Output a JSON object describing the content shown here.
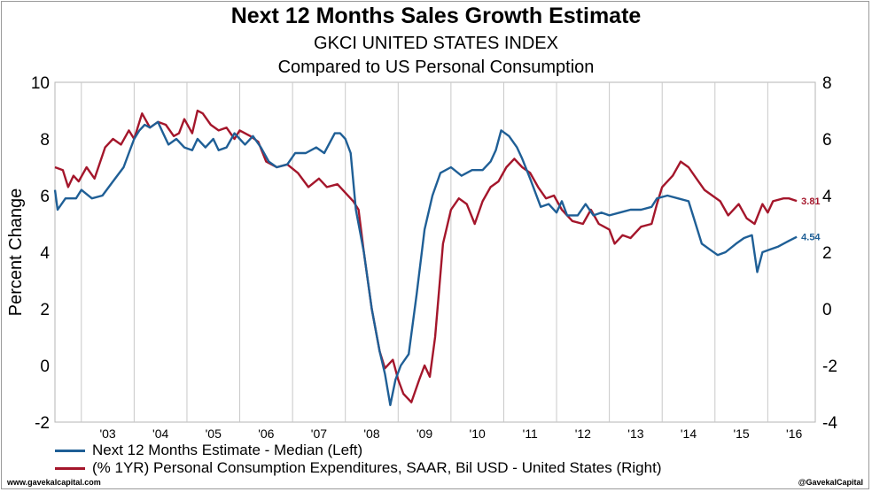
{
  "chart_data": {
    "type": "line",
    "title": "Next 12 Months Sales Growth Estimate",
    "subtitle": "GKCI UNITED STATES INDEX",
    "subtitle2": "Compared to US Personal Consumption",
    "ylabel_left": "Percent Change",
    "ylim_left": [
      -2,
      10
    ],
    "ylim_right": [
      -4,
      8
    ],
    "yticks_left": [
      "10",
      "8",
      "6",
      "4",
      "2",
      "0",
      "-2"
    ],
    "yticks_right": [
      "8",
      "6",
      "4",
      "2",
      "0",
      "-2",
      "-4"
    ],
    "xlim": [
      2002.5,
      2016.9
    ],
    "x_ticks": [
      "'03",
      "'04",
      "'05",
      "'06",
      "'07",
      "'08",
      "'09",
      "'10",
      "'11",
      "'12",
      "'13",
      "'14",
      "'15",
      "'16"
    ],
    "grid": "vertical",
    "legend_position": "bottom",
    "series": [
      {
        "name": "Next 12 Months Estimate - Median  (Left)",
        "axis": "left",
        "color": "#1f5f96",
        "end_label": "4.54",
        "points": [
          [
            2002.5,
            6.2
          ],
          [
            2002.55,
            5.5
          ],
          [
            2002.7,
            5.9
          ],
          [
            2002.9,
            5.9
          ],
          [
            2003.0,
            6.2
          ],
          [
            2003.2,
            5.9
          ],
          [
            2003.4,
            6.0
          ],
          [
            2003.6,
            6.5
          ],
          [
            2003.8,
            7.0
          ],
          [
            2003.9,
            7.5
          ],
          [
            2004.0,
            8.0
          ],
          [
            2004.1,
            8.3
          ],
          [
            2004.2,
            8.5
          ],
          [
            2004.3,
            8.4
          ],
          [
            2004.45,
            8.6
          ],
          [
            2004.55,
            8.2
          ],
          [
            2004.65,
            7.8
          ],
          [
            2004.8,
            8.0
          ],
          [
            2004.95,
            7.7
          ],
          [
            2005.1,
            7.6
          ],
          [
            2005.2,
            8.0
          ],
          [
            2005.35,
            7.7
          ],
          [
            2005.5,
            8.0
          ],
          [
            2005.6,
            7.6
          ],
          [
            2005.75,
            7.7
          ],
          [
            2005.9,
            8.2
          ],
          [
            2006.0,
            8.0
          ],
          [
            2006.1,
            7.8
          ],
          [
            2006.25,
            8.1
          ],
          [
            2006.4,
            7.7
          ],
          [
            2006.55,
            7.2
          ],
          [
            2006.7,
            7.0
          ],
          [
            2006.9,
            7.1
          ],
          [
            2007.05,
            7.5
          ],
          [
            2007.25,
            7.5
          ],
          [
            2007.45,
            7.7
          ],
          [
            2007.6,
            7.5
          ],
          [
            2007.8,
            8.2
          ],
          [
            2007.9,
            8.2
          ],
          [
            2008.0,
            8.0
          ],
          [
            2008.1,
            7.5
          ],
          [
            2008.2,
            5.5
          ],
          [
            2008.35,
            4.0
          ],
          [
            2008.5,
            2.0
          ],
          [
            2008.65,
            0.5
          ],
          [
            2008.75,
            -0.3
          ],
          [
            2008.85,
            -1.4
          ],
          [
            2008.95,
            -0.5
          ],
          [
            2009.05,
            0.0
          ],
          [
            2009.2,
            0.4
          ],
          [
            2009.35,
            2.5
          ],
          [
            2009.5,
            4.8
          ],
          [
            2009.65,
            6.0
          ],
          [
            2009.8,
            6.8
          ],
          [
            2010.0,
            7.0
          ],
          [
            2010.2,
            6.7
          ],
          [
            2010.4,
            6.9
          ],
          [
            2010.6,
            6.9
          ],
          [
            2010.75,
            7.2
          ],
          [
            2010.85,
            7.6
          ],
          [
            2010.95,
            8.3
          ],
          [
            2011.1,
            8.1
          ],
          [
            2011.25,
            7.7
          ],
          [
            2011.35,
            7.3
          ],
          [
            2011.5,
            6.6
          ],
          [
            2011.7,
            5.6
          ],
          [
            2011.85,
            5.7
          ],
          [
            2012.0,
            5.4
          ],
          [
            2012.1,
            5.8
          ],
          [
            2012.2,
            5.3
          ],
          [
            2012.4,
            5.3
          ],
          [
            2012.55,
            5.7
          ],
          [
            2012.7,
            5.3
          ],
          [
            2012.85,
            5.4
          ],
          [
            2013.0,
            5.3
          ],
          [
            2013.2,
            5.4
          ],
          [
            2013.4,
            5.5
          ],
          [
            2013.6,
            5.5
          ],
          [
            2013.8,
            5.6
          ],
          [
            2013.9,
            5.9
          ],
          [
            2014.1,
            6.0
          ],
          [
            2014.3,
            5.9
          ],
          [
            2014.5,
            5.8
          ],
          [
            2014.6,
            5.2
          ],
          [
            2014.75,
            4.3
          ],
          [
            2014.9,
            4.1
          ],
          [
            2015.05,
            3.9
          ],
          [
            2015.2,
            4.0
          ],
          [
            2015.4,
            4.3
          ],
          [
            2015.55,
            4.5
          ],
          [
            2015.7,
            4.6
          ],
          [
            2015.8,
            3.3
          ],
          [
            2015.9,
            4.0
          ],
          [
            2016.05,
            4.1
          ],
          [
            2016.2,
            4.2
          ],
          [
            2016.4,
            4.4
          ],
          [
            2016.55,
            4.54
          ]
        ]
      },
      {
        "name": "(% 1YR) Personal Consumption Expenditures, SAAR, Bil USD - United States  (Right)",
        "axis": "right",
        "color": "#a4162b",
        "end_label": "3.81",
        "points": [
          [
            2002.5,
            5.0
          ],
          [
            2002.65,
            4.9
          ],
          [
            2002.75,
            4.3
          ],
          [
            2002.85,
            4.7
          ],
          [
            2002.95,
            4.5
          ],
          [
            2003.1,
            5.0
          ],
          [
            2003.25,
            4.6
          ],
          [
            2003.45,
            5.7
          ],
          [
            2003.6,
            6.0
          ],
          [
            2003.75,
            5.8
          ],
          [
            2003.9,
            6.3
          ],
          [
            2004.0,
            6.0
          ],
          [
            2004.15,
            6.9
          ],
          [
            2004.3,
            6.4
          ],
          [
            2004.45,
            6.6
          ],
          [
            2004.6,
            6.5
          ],
          [
            2004.75,
            6.1
          ],
          [
            2004.85,
            6.2
          ],
          [
            2004.95,
            6.7
          ],
          [
            2005.1,
            6.2
          ],
          [
            2005.2,
            7.0
          ],
          [
            2005.3,
            6.9
          ],
          [
            2005.45,
            6.5
          ],
          [
            2005.6,
            6.3
          ],
          [
            2005.75,
            6.4
          ],
          [
            2005.9,
            6.0
          ],
          [
            2006.0,
            6.3
          ],
          [
            2006.2,
            6.1
          ],
          [
            2006.35,
            5.9
          ],
          [
            2006.5,
            5.2
          ],
          [
            2006.7,
            5.0
          ],
          [
            2006.9,
            5.1
          ],
          [
            2007.1,
            4.8
          ],
          [
            2007.3,
            4.3
          ],
          [
            2007.5,
            4.6
          ],
          [
            2007.65,
            4.3
          ],
          [
            2007.85,
            4.4
          ],
          [
            2008.0,
            4.1
          ],
          [
            2008.15,
            3.8
          ],
          [
            2008.25,
            3.5
          ],
          [
            2008.35,
            2.0
          ],
          [
            2008.5,
            0.0
          ],
          [
            2008.65,
            -1.5
          ],
          [
            2008.75,
            -2.1
          ],
          [
            2008.9,
            -1.8
          ],
          [
            2009.0,
            -2.5
          ],
          [
            2009.1,
            -3.0
          ],
          [
            2009.25,
            -3.3
          ],
          [
            2009.4,
            -2.5
          ],
          [
            2009.5,
            -2.0
          ],
          [
            2009.6,
            -2.4
          ],
          [
            2009.7,
            -1.0
          ],
          [
            2009.85,
            2.3
          ],
          [
            2010.0,
            3.5
          ],
          [
            2010.15,
            3.9
          ],
          [
            2010.3,
            3.7
          ],
          [
            2010.45,
            3.0
          ],
          [
            2010.6,
            3.8
          ],
          [
            2010.75,
            4.3
          ],
          [
            2010.9,
            4.5
          ],
          [
            2011.05,
            5.0
          ],
          [
            2011.2,
            5.3
          ],
          [
            2011.35,
            5.0
          ],
          [
            2011.5,
            4.8
          ],
          [
            2011.65,
            4.3
          ],
          [
            2011.8,
            3.9
          ],
          [
            2011.95,
            4.0
          ],
          [
            2012.1,
            3.5
          ],
          [
            2012.3,
            3.1
          ],
          [
            2012.5,
            3.0
          ],
          [
            2012.65,
            3.5
          ],
          [
            2012.8,
            3.0
          ],
          [
            2013.0,
            2.8
          ],
          [
            2013.1,
            2.3
          ],
          [
            2013.25,
            2.6
          ],
          [
            2013.4,
            2.5
          ],
          [
            2013.6,
            2.9
          ],
          [
            2013.8,
            3.0
          ],
          [
            2013.9,
            3.7
          ],
          [
            2014.0,
            4.3
          ],
          [
            2014.2,
            4.7
          ],
          [
            2014.35,
            5.2
          ],
          [
            2014.5,
            5.0
          ],
          [
            2014.65,
            4.6
          ],
          [
            2014.8,
            4.2
          ],
          [
            2014.95,
            4.0
          ],
          [
            2015.1,
            3.8
          ],
          [
            2015.25,
            3.3
          ],
          [
            2015.45,
            3.7
          ],
          [
            2015.6,
            3.2
          ],
          [
            2015.75,
            3.0
          ],
          [
            2015.9,
            3.7
          ],
          [
            2016.0,
            3.4
          ],
          [
            2016.1,
            3.8
          ],
          [
            2016.3,
            3.9
          ],
          [
            2016.4,
            3.9
          ],
          [
            2016.55,
            3.81
          ]
        ]
      }
    ]
  },
  "footer": {
    "source": "www.gavekalcapital.com",
    "handle": "@GavekalCapital"
  }
}
